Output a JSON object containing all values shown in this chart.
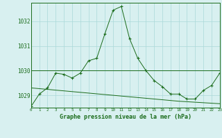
{
  "hours": [
    0,
    1,
    2,
    3,
    4,
    5,
    6,
    7,
    8,
    9,
    10,
    11,
    12,
    13,
    14,
    15,
    16,
    17,
    18,
    19,
    20,
    21,
    22,
    23
  ],
  "pressure_main": [
    1028.55,
    1029.05,
    1029.3,
    1029.9,
    1029.85,
    1029.7,
    1029.9,
    1030.4,
    1030.5,
    1031.5,
    1032.45,
    1032.6,
    1031.3,
    1030.5,
    1030.0,
    1029.6,
    1029.35,
    1029.05,
    1029.05,
    1028.85,
    1028.85,
    1029.2,
    1029.4,
    1029.9
  ],
  "pressure_avg": [
    1030.0,
    1030.0,
    1030.0,
    1030.0,
    1030.0,
    1030.0,
    1030.0,
    1030.0,
    1030.0,
    1030.0,
    1030.0,
    1030.0,
    1030.0,
    1030.0,
    1030.0,
    1030.0,
    1030.0,
    1030.0,
    1030.0,
    1030.0,
    1030.0,
    1030.0,
    1030.0,
    1030.0
  ],
  "pressure_trend": [
    1029.3,
    1029.27,
    1029.24,
    1029.21,
    1029.18,
    1029.15,
    1029.12,
    1029.09,
    1029.06,
    1029.03,
    1029.0,
    1028.97,
    1028.94,
    1028.91,
    1028.88,
    1028.85,
    1028.82,
    1028.79,
    1028.76,
    1028.74,
    1028.72,
    1028.7,
    1028.68,
    1028.66
  ],
  "ylim": [
    1028.5,
    1032.75
  ],
  "yticks": [
    1029,
    1030,
    1031,
    1032
  ],
  "xtick_labels": [
    "0",
    "1",
    "2",
    "3",
    "4",
    "5",
    "6",
    "7",
    "8",
    "9",
    "10",
    "11",
    "12",
    "13",
    "14",
    "15",
    "16",
    "17",
    "18",
    "19",
    "20",
    "21",
    "22",
    "23"
  ],
  "line_color": "#1a6b1a",
  "bg_color": "#d8f0f0",
  "grid_color": "#aad8d8",
  "xlabel": "Graphe pression niveau de la mer (hPa)",
  "marker": "+"
}
